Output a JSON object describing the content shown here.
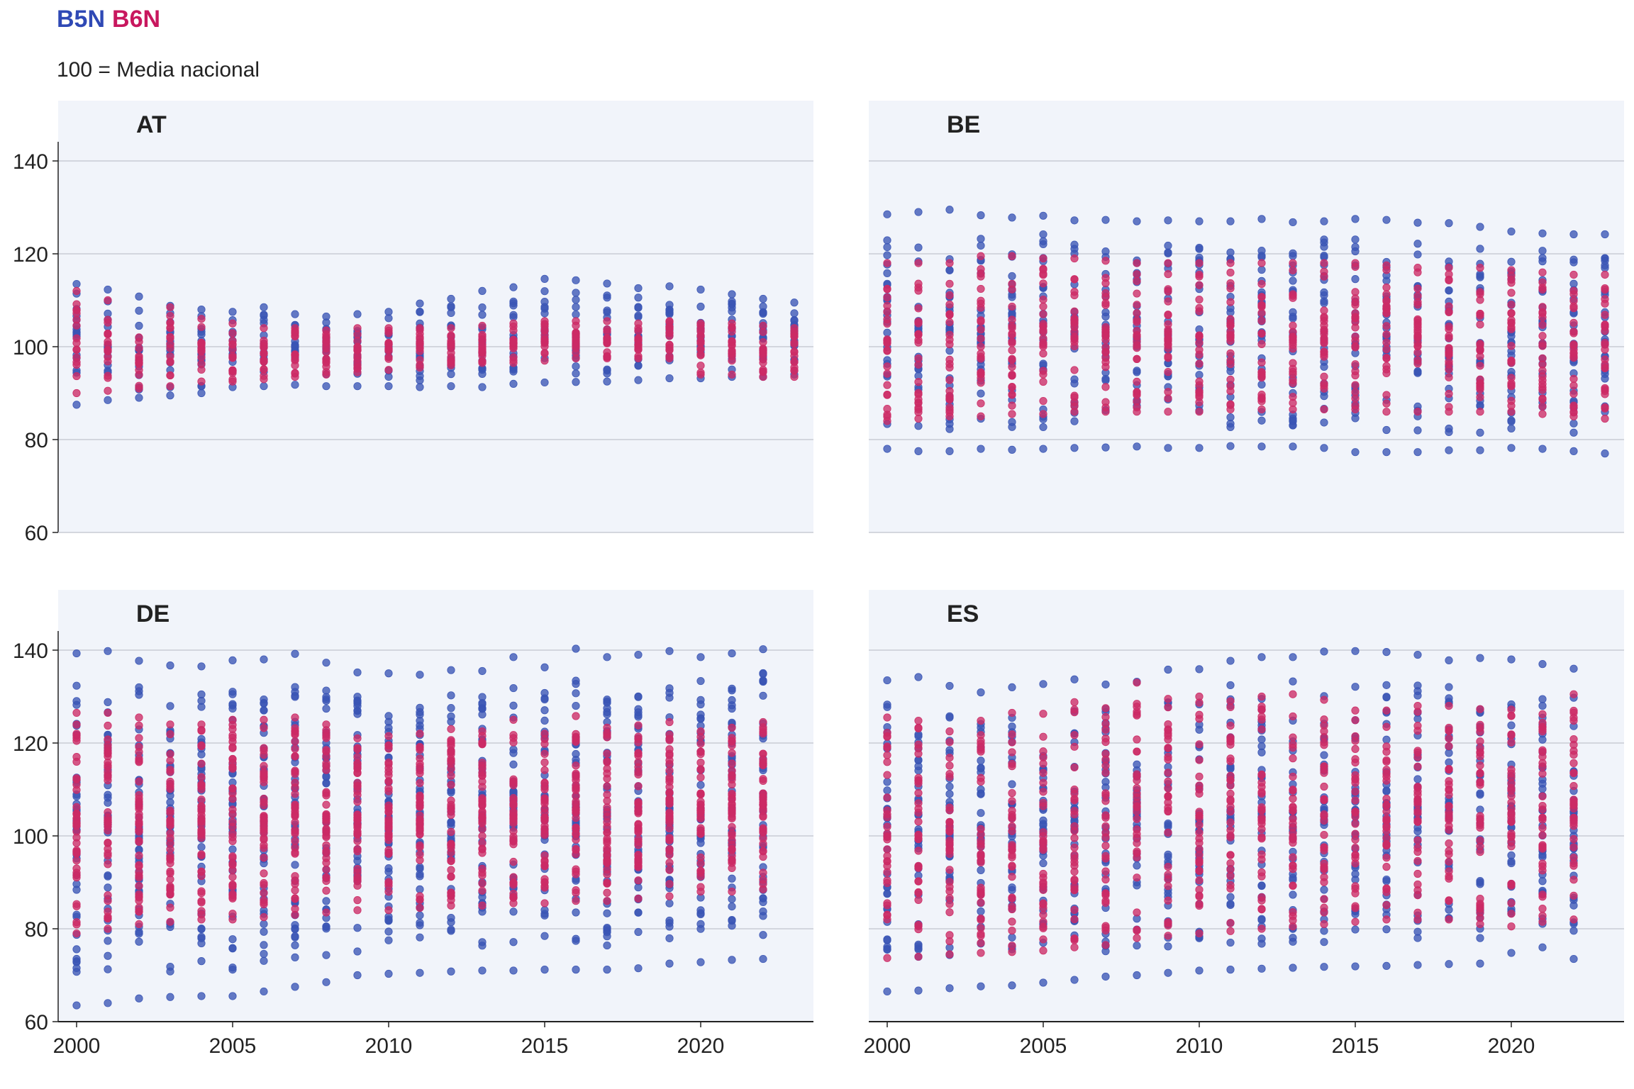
{
  "legend": [
    {
      "name": "B5N",
      "color": "#2f49b5"
    },
    {
      "name": "B6N",
      "color": "#c8175e"
    }
  ],
  "subtitle": "100 = Media nacional",
  "colors": {
    "panel_bg": "#f1f4fa",
    "grid": "#c9ccd4",
    "axis": "#222222",
    "b5n": "#3a55b5",
    "b6n": "#cc2a65"
  },
  "chart_data": [
    {
      "type": "scatter",
      "panel": "AT",
      "x_ticks": [
        "2000",
        "2005",
        "2010",
        "2015",
        "2020"
      ],
      "y_ticks": [
        "60",
        "80",
        "100",
        "120",
        "140"
      ],
      "ylim": [
        60,
        140
      ],
      "xlim": [
        1999.5,
        2023.5
      ],
      "grid": true,
      "x": [
        2000,
        2001,
        2002,
        2003,
        2004,
        2005,
        2006,
        2007,
        2008,
        2009,
        2010,
        2011,
        2012,
        2013,
        2014,
        2015,
        2016,
        2017,
        2018,
        2019,
        2020,
        2021,
        2022,
        2023
      ],
      "series": [
        {
          "name": "B5N",
          "ranges": [
            [
              87.5,
              113.5
            ],
            [
              88.5,
              112.3
            ],
            [
              89,
              110.8
            ],
            [
              89.5,
              108.8
            ],
            [
              90,
              108
            ],
            [
              91.3,
              107.5
            ],
            [
              91.5,
              108.5
            ],
            [
              91.8,
              107
            ],
            [
              91.5,
              106.5
            ],
            [
              91.5,
              107
            ],
            [
              91.5,
              107.5
            ],
            [
              91.3,
              109.3
            ],
            [
              91.5,
              110.3
            ],
            [
              91.3,
              112
            ],
            [
              92,
              112.8
            ],
            [
              92.3,
              114.6
            ],
            [
              92.4,
              114.3
            ],
            [
              92.5,
              113.6
            ],
            [
              92.8,
              112.6
            ],
            [
              93.2,
              113
            ],
            [
              93.2,
              112.3
            ],
            [
              93.5,
              111.3
            ],
            [
              93.5,
              110.3
            ],
            [
              94,
              109.5
            ]
          ],
          "highs": [
            113.5,
            112.3,
            110.8,
            108.8,
            108,
            107.5,
            108.5,
            107,
            106.5,
            107,
            107.5,
            109.3,
            110.3,
            112,
            112.8,
            114.6,
            114.3,
            113.6,
            112.6,
            113,
            112.3,
            111.3,
            110.3,
            109.5
          ]
        },
        {
          "name": "B6N",
          "ranges": [
            [
              90,
              112
            ],
            [
              90.5,
              110
            ],
            [
              91,
              102
            ],
            [
              91.5,
              108.5
            ],
            [
              92.5,
              106
            ],
            [
              92.5,
              105
            ],
            [
              93,
              104
            ],
            [
              93.5,
              104
            ],
            [
              94,
              103.5
            ],
            [
              94.5,
              104
            ],
            [
              95,
              104
            ],
            [
              95.5,
              104
            ],
            [
              96,
              104
            ],
            [
              96.5,
              104.5
            ],
            [
              96.5,
              105
            ],
            [
              97,
              105.5
            ],
            [
              97.5,
              105.5
            ],
            [
              97.5,
              105.5
            ],
            [
              97.5,
              105
            ],
            [
              97.5,
              105.5
            ],
            [
              94,
              105
            ],
            [
              94,
              105
            ],
            [
              93.5,
              104.5
            ],
            [
              93.5,
              104
            ]
          ]
        }
      ]
    },
    {
      "type": "scatter",
      "panel": "BE",
      "x_ticks": [
        "2000",
        "2005",
        "2010",
        "2015",
        "2020"
      ],
      "y_ticks": [
        "60",
        "80",
        "100",
        "120",
        "140"
      ],
      "ylim": [
        60,
        140
      ],
      "xlim": [
        1999.5,
        2023.5
      ],
      "grid": true,
      "x": [
        2000,
        2001,
        2002,
        2003,
        2004,
        2005,
        2006,
        2007,
        2008,
        2009,
        2010,
        2011,
        2012,
        2013,
        2014,
        2015,
        2016,
        2017,
        2018,
        2019,
        2020,
        2021,
        2022,
        2023
      ],
      "series": [
        {
          "name": "B5N",
          "ranges": [
            [
              78,
              128.5
            ],
            [
              77.5,
              129
            ],
            [
              77.5,
              129.5
            ],
            [
              78,
              128.3
            ],
            [
              77.8,
              127.8
            ],
            [
              78,
              128.2
            ],
            [
              78.2,
              127.2
            ],
            [
              78.3,
              127.3
            ],
            [
              78.5,
              127
            ],
            [
              78.2,
              127.2
            ],
            [
              78.2,
              127
            ],
            [
              78.6,
              127
            ],
            [
              78.5,
              127.5
            ],
            [
              78.5,
              126.8
            ],
            [
              78.2,
              127
            ],
            [
              77.3,
              127.5
            ],
            [
              77.3,
              127.3
            ],
            [
              77.3,
              126.7
            ],
            [
              77.7,
              126.6
            ],
            [
              77.7,
              125.8
            ],
            [
              78.2,
              124.8
            ],
            [
              78,
              124.4
            ],
            [
              77.5,
              124.2
            ],
            [
              77,
              124.2
            ]
          ]
        },
        {
          "name": "B6N",
          "ranges": [
            [
              84,
              118
            ],
            [
              84.5,
              118
            ],
            [
              85,
              118
            ],
            [
              85,
              119.5
            ],
            [
              85.5,
              119.5
            ],
            [
              85.5,
              119
            ],
            [
              86,
              119
            ],
            [
              86,
              118.5
            ],
            [
              86,
              118
            ],
            [
              86,
              118
            ],
            [
              86,
              118
            ],
            [
              86.5,
              118
            ],
            [
              86.5,
              118
            ],
            [
              86.5,
              118
            ],
            [
              86.5,
              118
            ],
            [
              86.5,
              118
            ],
            [
              86,
              117.5
            ],
            [
              86,
              117
            ],
            [
              86,
              117
            ],
            [
              86,
              117
            ],
            [
              86,
              116.5
            ],
            [
              85.5,
              116
            ],
            [
              85,
              115.5
            ],
            [
              84.5,
              115.5
            ]
          ]
        }
      ]
    },
    {
      "type": "scatter",
      "panel": "DE",
      "x_ticks": [
        "2000",
        "2005",
        "2010",
        "2015",
        "2020"
      ],
      "y_ticks": [
        "60",
        "80",
        "100",
        "120",
        "140"
      ],
      "ylim": [
        60,
        140
      ],
      "xlim": [
        1999.5,
        2023.5
      ],
      "grid": true,
      "x": [
        2000,
        2001,
        2002,
        2003,
        2004,
        2005,
        2006,
        2007,
        2008,
        2009,
        2010,
        2011,
        2012,
        2013,
        2014,
        2015,
        2016,
        2017,
        2018,
        2019,
        2020,
        2021,
        2022
      ],
      "series": [
        {
          "name": "B5N",
          "ranges": [
            [
              63.5,
              139.3
            ],
            [
              64,
              139.8
            ],
            [
              65,
              137.7
            ],
            [
              65.3,
              136.7
            ],
            [
              65.5,
              136.5
            ],
            [
              65.5,
              137.8
            ],
            [
              66.5,
              138
            ],
            [
              67.5,
              139.2
            ],
            [
              68.5,
              137.3
            ],
            [
              70,
              135.2
            ],
            [
              70.3,
              135
            ],
            [
              70.5,
              134.7
            ],
            [
              70.8,
              135.7
            ],
            [
              71,
              135.5
            ],
            [
              71,
              138.5
            ],
            [
              71.2,
              136.3
            ],
            [
              71.2,
              140.3
            ],
            [
              71.2,
              138.5
            ],
            [
              71.5,
              139
            ],
            [
              72.5,
              139.8
            ],
            [
              72.8,
              138.5
            ],
            [
              73.3,
              139.3
            ],
            [
              73.5,
              140.2
            ]
          ]
        },
        {
          "name": "B6N",
          "ranges": [
            [
              79,
              126.5
            ],
            [
              80,
              126.5
            ],
            [
              81,
              125.5
            ],
            [
              81.5,
              124
            ],
            [
              82,
              124
            ],
            [
              82,
              125
            ],
            [
              82.5,
              125
            ],
            [
              83,
              125.5
            ],
            [
              83.5,
              124
            ],
            [
              84,
              121
            ],
            [
              84,
              121.5
            ],
            [
              84.5,
              122
            ],
            [
              85,
              123
            ],
            [
              85,
              122.5
            ],
            [
              85.5,
              125
            ],
            [
              85.5,
              122
            ],
            [
              86,
              125.8
            ],
            [
              86,
              123.3
            ],
            [
              86.5,
              123.8
            ],
            [
              87,
              124.5
            ],
            [
              88,
              122.5
            ],
            [
              88,
              123.3
            ],
            [
              88.5,
              124.5
            ]
          ]
        }
      ]
    },
    {
      "type": "scatter",
      "panel": "ES",
      "x_ticks": [
        "2000",
        "2005",
        "2010",
        "2015",
        "2020"
      ],
      "y_ticks": [
        "60",
        "80",
        "100",
        "120",
        "140"
      ],
      "ylim": [
        60,
        140
      ],
      "xlim": [
        1999.5,
        2023.5
      ],
      "grid": true,
      "x": [
        2000,
        2001,
        2002,
        2003,
        2004,
        2005,
        2006,
        2007,
        2008,
        2009,
        2010,
        2011,
        2012,
        2013,
        2014,
        2015,
        2016,
        2017,
        2018,
        2019,
        2020,
        2021,
        2022
      ],
      "series": [
        {
          "name": "B5N",
          "ranges": [
            [
              66.5,
              133.5
            ],
            [
              66.7,
              134.2
            ],
            [
              67.2,
              132.3
            ],
            [
              67.6,
              130.9
            ],
            [
              67.8,
              132
            ],
            [
              68.4,
              132.7
            ],
            [
              69,
              133.7
            ],
            [
              69.7,
              132.6
            ],
            [
              70,
              133.2
            ],
            [
              70.5,
              135.8
            ],
            [
              71,
              135.9
            ],
            [
              71.2,
              137.7
            ],
            [
              71.4,
              138.5
            ],
            [
              71.6,
              138.5
            ],
            [
              71.8,
              139.7
            ],
            [
              71.9,
              139.8
            ],
            [
              72,
              139.6
            ],
            [
              72.2,
              139
            ],
            [
              72.4,
              137.8
            ],
            [
              72.5,
              138.3
            ],
            [
              74.8,
              138
            ],
            [
              76,
              137
            ],
            [
              73.5,
              136
            ]
          ]
        },
        {
          "name": "B6N",
          "ranges": [
            [
              73.7,
              125.5
            ],
            [
              74,
              124.8
            ],
            [
              74.5,
              122.5
            ],
            [
              74.8,
              124.8
            ],
            [
              75,
              126.5
            ],
            [
              75.3,
              126.3
            ],
            [
              76,
              128.8
            ],
            [
              76.5,
              127.5
            ],
            [
              78,
              133
            ],
            [
              78.5,
              129.5
            ],
            [
              79,
              130
            ],
            [
              79.5,
              129
            ],
            [
              80,
              130
            ],
            [
              80.5,
              130.5
            ],
            [
              81,
              129.3
            ],
            [
              81.5,
              127
            ],
            [
              82,
              127
            ],
            [
              82,
              128
            ],
            [
              82,
              128
            ],
            [
              81,
              127.3
            ],
            [
              80.5,
              127.2
            ],
            [
              81.5,
              126.2
            ],
            [
              82,
              130.5
            ]
          ]
        }
      ]
    }
  ]
}
